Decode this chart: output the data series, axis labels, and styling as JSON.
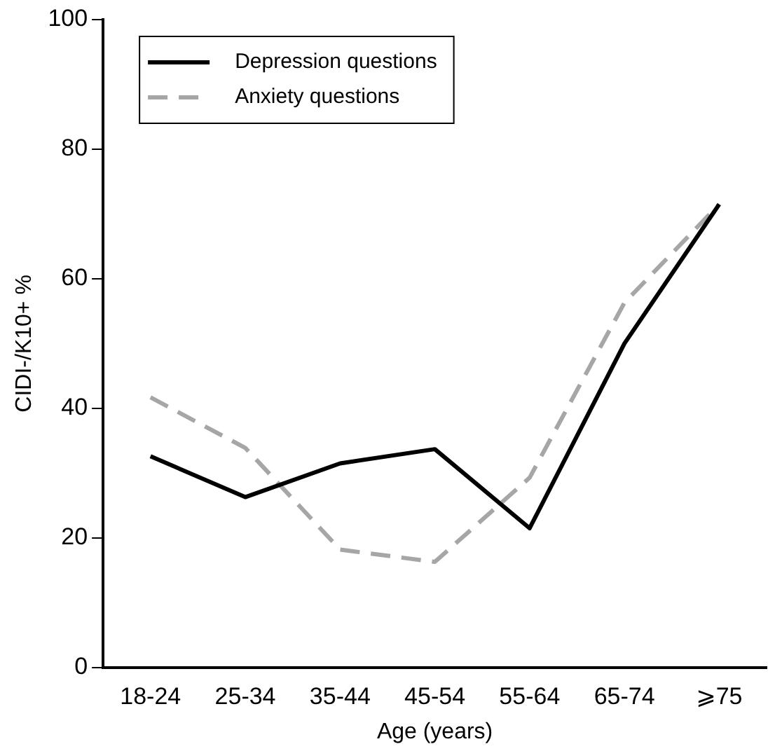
{
  "chart_data": {
    "type": "line",
    "xlabel": "Age (years)",
    "ylabel": "CIDI-/K10+ %",
    "categories": [
      "18-24",
      "25-34",
      "35-44",
      "45-54",
      "55-64",
      "65-74",
      "⩾75"
    ],
    "series": [
      {
        "name": "Depression questions",
        "color": "#000000",
        "line_style": "solid",
        "values": [
          32.6,
          26.3,
          31.5,
          33.7,
          21.5,
          50,
          71.5
        ]
      },
      {
        "name": "Anxiety questions",
        "color": "#a6a6a6",
        "line_style": "dashed",
        "values": [
          41.7,
          33.9,
          18.2,
          16.3,
          29.3,
          56.3,
          71.5
        ]
      }
    ],
    "ylim": [
      0,
      100
    ],
    "yticks": [
      0,
      20,
      40,
      60,
      80,
      100
    ],
    "grid": false,
    "legend": "top left",
    "marker": "none"
  }
}
